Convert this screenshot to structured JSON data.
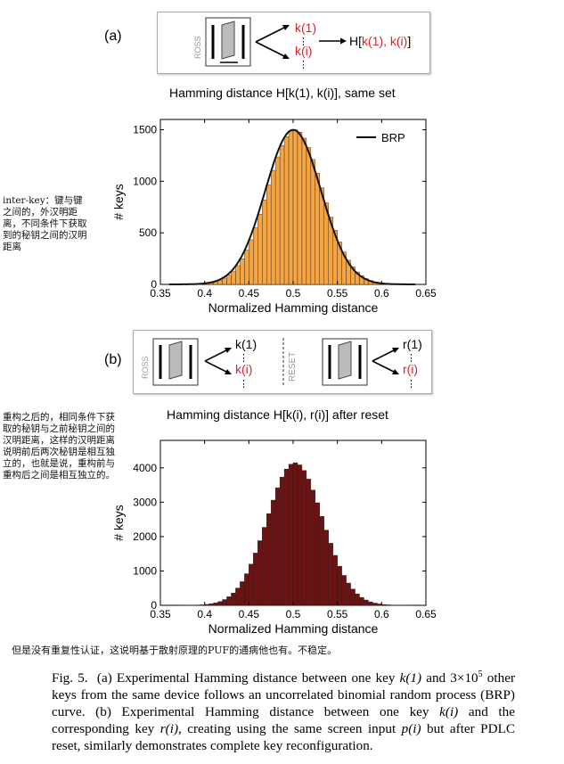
{
  "panel_a": {
    "label": "(a)",
    "schematic": {
      "ross_label": "ROSS",
      "keys": [
        "k(1)",
        "⋮",
        "k(i)",
        "⋮"
      ],
      "result_prefix": "H[",
      "result_args": "k(1), k(i)",
      "result_suffix": "]"
    },
    "plot_title": "Hamming distance H[k(1), k(i)], same set"
  },
  "panel_b": {
    "label": "(b)",
    "schematic": {
      "ross_label": "ROSS",
      "left_keys": [
        "k(1)",
        "⋮",
        "k(i)",
        "⋮"
      ],
      "reset_label": "RESET",
      "right_keys": [
        "r(1)",
        "⋮",
        "r(i)",
        "⋮"
      ]
    },
    "plot_title": "Hamming distance H[k(i), r(i)] after reset"
  },
  "notes": {
    "inter_key": "inter-key：键与键之间的，外汉明距离，不同条件下获取到的秘钥之间的汉明距离",
    "after_reset": "重构之后的，相同条件下获取的秘钥与之前秘钥之间的汉明距离，这样的汉明距离说明前后两次秘钥是相互独立的，也就是说，重构前与重构后之间是相互独立的。",
    "bottom": "但是没有重复性认证，这说明基于散射原理的PUF的通病他也有。不稳定。"
  },
  "caption": {
    "fig_label": "Fig. 5.",
    "text_a1": "(a) Experimental Hamming distance between one key ",
    "math_k1": "k(1)",
    "text_a2": " and ",
    "math_count": "3×10",
    "math_exp": "5",
    "text_a3": " other keys from the same device follows an uncorrelated binomial random process (BRP) curve. (b) Experimental Hamming distance between one key ",
    "math_ki": "k(i)",
    "text_b1": " and the corresponding key ",
    "math_ri": "r(i)",
    "text_b2": ", creating using the same screen input ",
    "math_pi": "p(i)",
    "text_b3": " but after PDLC reset, similarly demonstrates complete key reconfiguration."
  },
  "colors": {
    "hist_a": "#f5a443",
    "hist_b": "#6b1212",
    "key_red": "#e0202a",
    "brp_curve": "#111111"
  },
  "chart_data": [
    {
      "type": "bar",
      "title": "Hamming distance H[k(1), k(i)], same set",
      "xlabel": "Normalized Hamming distance",
      "ylabel": "# keys",
      "xlim": [
        0.35,
        0.65
      ],
      "ylim": [
        0,
        1600
      ],
      "xticks": [
        "0.35",
        "0.4",
        "0.45",
        "0.5",
        "0.55",
        "0.6",
        "0.65"
      ],
      "yticks": [
        "0",
        "500",
        "1000",
        "1500"
      ],
      "legend": {
        "position": "top-right",
        "entries": [
          "BRP"
        ]
      },
      "histogram": {
        "center": 0.502,
        "sigma": 0.0314,
        "peak": 1500,
        "bin_width": 0.005,
        "range": [
          0.4,
          0.61
        ]
      },
      "brp_curve": {
        "center": 0.5,
        "sigma": 0.0315,
        "peak": 1500
      }
    },
    {
      "type": "bar",
      "title": "Hamming distance H[k(i), r(i)] after reset",
      "xlabel": "Normalized Hamming distance",
      "ylabel": "# keys",
      "xlim": [
        0.35,
        0.65
      ],
      "ylim": [
        0,
        4800
      ],
      "xticks": [
        "0.35",
        "0.4",
        "0.45",
        "0.5",
        "0.55",
        "0.6",
        "0.65"
      ],
      "yticks": [
        "0",
        "1000",
        "2000",
        "3000",
        "4000"
      ],
      "histogram": {
        "center": 0.502,
        "sigma": 0.0314,
        "peak": 4150,
        "bin_width": 0.005,
        "range": [
          0.37,
          0.635
        ]
      }
    }
  ]
}
